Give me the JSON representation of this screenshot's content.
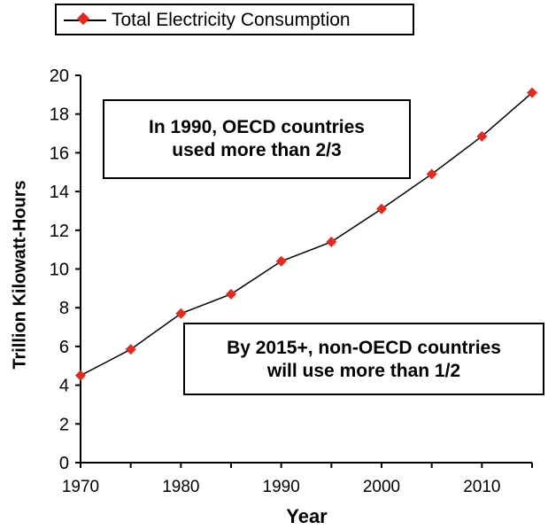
{
  "chart_data": {
    "type": "line",
    "title": "",
    "xlabel": "Year",
    "ylabel": "Trillion Kilowatt-Hours",
    "xlim": [
      1970,
      2015
    ],
    "ylim": [
      0,
      20
    ],
    "x_ticks": [
      "1970",
      "1980",
      "1990",
      "2000",
      "2010"
    ],
    "y_ticks": [
      "0",
      "2",
      "4",
      "6",
      "8",
      "10",
      "12",
      "14",
      "16",
      "18",
      "20"
    ],
    "grid": false,
    "legend_position": "top-left",
    "series": [
      {
        "name": "Total Electricity Consumption",
        "color": "#e8281c",
        "line_color": "#000000",
        "x": [
          1970,
          1975,
          1980,
          1985,
          1990,
          1995,
          2000,
          2005,
          2010,
          2015
        ],
        "y": [
          4.5,
          5.85,
          7.7,
          8.7,
          10.4,
          11.4,
          13.1,
          14.9,
          16.85,
          19.1
        ]
      }
    ],
    "annotations": [
      {
        "lines": [
          "In 1990, OECD countries",
          "used more than 2/3"
        ]
      },
      {
        "lines": [
          "By 2015+, non-OECD countries",
          "will use more than 1/2"
        ]
      }
    ]
  }
}
